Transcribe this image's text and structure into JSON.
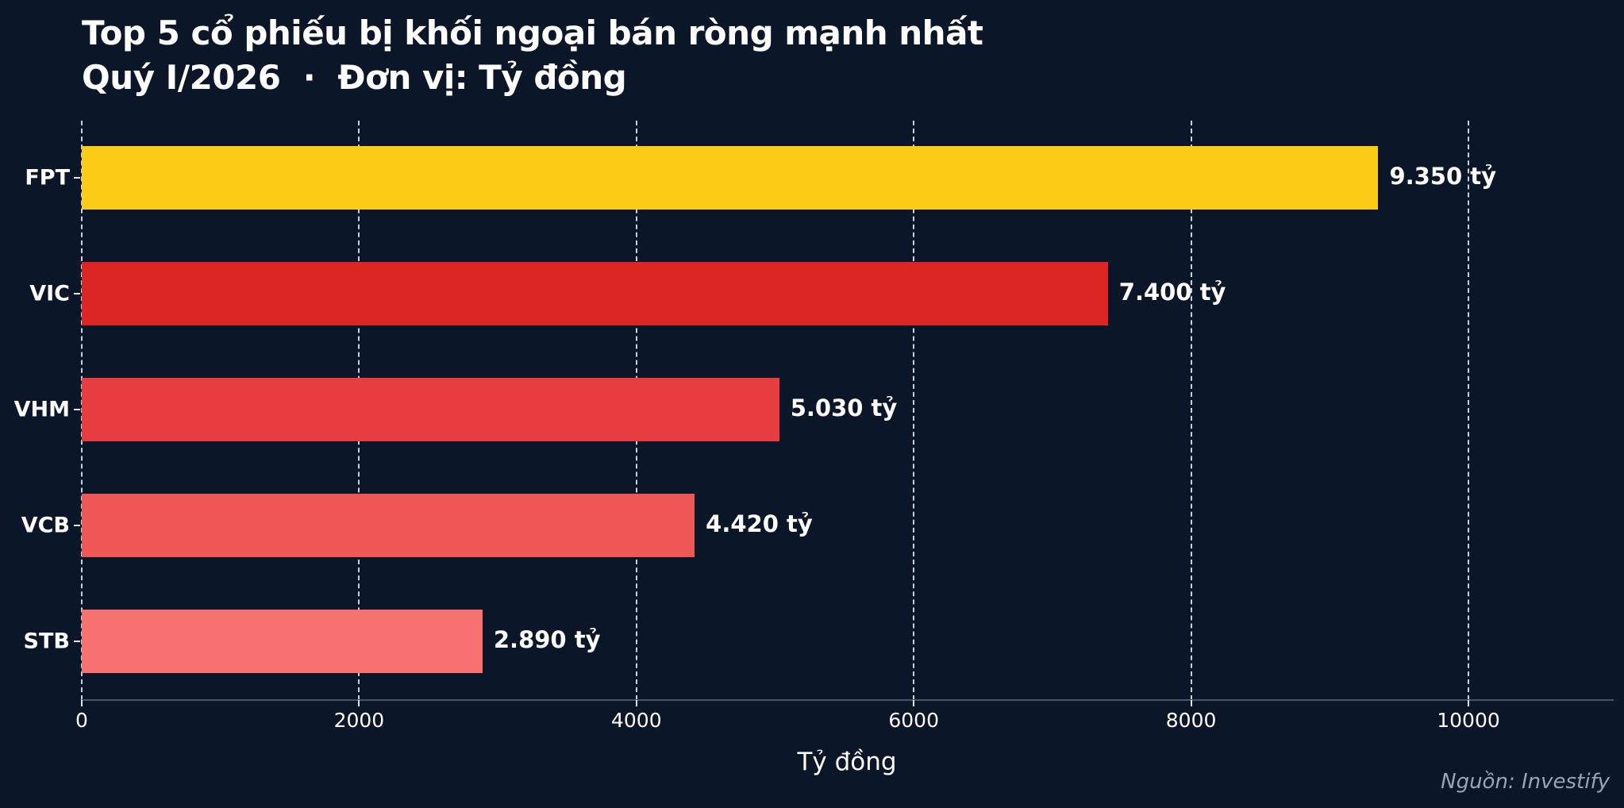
{
  "title": {
    "line1": "Top 5 cổ phiếu bị khối ngoại bán ròng mạnh nhất",
    "line2": "Quý I/2026  ·  Đơn vị: Tỷ đồng"
  },
  "xaxis": {
    "label": "Tỷ đồng",
    "ticks": [
      "0",
      "2000",
      "4000",
      "6000",
      "8000",
      "10000"
    ]
  },
  "source": "Nguồn: Investify",
  "bars": [
    {
      "name": "FPT",
      "value": 9350,
      "label": "9.350 tỷ",
      "color": "#facc15"
    },
    {
      "name": "VIC",
      "value": 7400,
      "label": "7.400 tỷ",
      "color": "#dc2626"
    },
    {
      "name": "VHM",
      "value": 5030,
      "label": "5.030 tỷ",
      "color": "#e83d40"
    },
    {
      "name": "VCB",
      "value": 4420,
      "label": "4.420 tỷ",
      "color": "#ef5656"
    },
    {
      "name": "STB",
      "value": 2890,
      "label": "2.890 tỷ",
      "color": "#f87171"
    }
  ],
  "colors": {
    "background": "#0b1628",
    "grid": "#dfe6f0",
    "axis": "#46536a",
    "source": "#9aa5b4"
  },
  "chart_data": {
    "type": "bar",
    "orientation": "horizontal",
    "title": "Top 5 cổ phiếu bị khối ngoại bán ròng mạnh nhất",
    "subtitle": "Quý I/2026 · Đơn vị: Tỷ đồng",
    "categories": [
      "FPT",
      "VIC",
      "VHM",
      "VCB",
      "STB"
    ],
    "values": [
      9350,
      7400,
      5030,
      4420,
      2890
    ],
    "data_labels": [
      "9.350 tỷ",
      "7.400 tỷ",
      "5.030 tỷ",
      "4.420 tỷ",
      "2.890 tỷ"
    ],
    "xlabel": "Tỷ đồng",
    "ylabel": "",
    "xlim": [
      0,
      11000
    ],
    "xticks": [
      0,
      2000,
      4000,
      6000,
      8000,
      10000
    ],
    "grid": "vertical dashed",
    "legend": null,
    "annotation": "Nguồn: Investify"
  }
}
